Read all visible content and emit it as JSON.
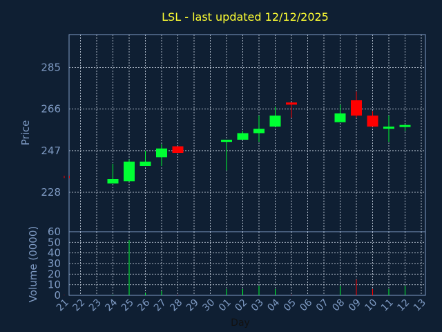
{
  "chart_data": {
    "type": "candlestick",
    "title": "LSL - last updated 12/12/2025",
    "xlabel": "Day",
    "ylabel": "Price",
    "volume_label": "Volume (0000)",
    "price_ticks": [
      "228",
      "247",
      "266",
      "285"
    ],
    "price_tick_values": [
      228,
      247,
      266,
      285
    ],
    "price_range": [
      210,
      300
    ],
    "volume_ticks": [
      "0",
      "10",
      "20",
      "30",
      "40",
      "50",
      "60"
    ],
    "volume_tick_values": [
      0,
      10,
      20,
      30,
      40,
      50,
      60
    ],
    "volume_range": [
      0,
      60
    ],
    "x_ticks": [
      "21",
      "22",
      "23",
      "24",
      "25",
      "26",
      "27",
      "28",
      "29",
      "30",
      "01",
      "02",
      "03",
      "04",
      "05",
      "06",
      "07",
      "08",
      "09",
      "10",
      "11",
      "12",
      "13"
    ],
    "grid": true,
    "candles": [
      {
        "x": "21",
        "open": 235.5,
        "high": 235.5,
        "low": 234.5,
        "close": 234.5,
        "volume": 0.3
      },
      {
        "x": "24",
        "open": 232,
        "high": 241,
        "low": 232,
        "close": 234,
        "volume": 0.6
      },
      {
        "x": "25",
        "open": 233,
        "high": 243,
        "low": 233,
        "close": 242,
        "volume": 52
      },
      {
        "x": "26",
        "open": 240,
        "high": 247,
        "low": 240,
        "close": 242,
        "volume": 2
      },
      {
        "x": "27",
        "open": 244,
        "high": 250,
        "low": 240,
        "close": 248,
        "volume": 4
      },
      {
        "x": "28",
        "open": 249,
        "high": 249,
        "low": 246,
        "close": 246,
        "volume": 0.5
      },
      {
        "x": "01",
        "open": 251,
        "high": 252,
        "low": 238,
        "close": 252,
        "volume": 6
      },
      {
        "x": "02",
        "open": 252,
        "high": 256,
        "low": 252,
        "close": 255,
        "volume": 6
      },
      {
        "x": "03",
        "open": 255,
        "high": 263,
        "low": 251,
        "close": 257,
        "volume": 9
      },
      {
        "x": "04",
        "open": 258,
        "high": 267,
        "low": 258,
        "close": 263,
        "volume": 6
      },
      {
        "x": "05",
        "open": 269,
        "high": 269,
        "low": 262,
        "close": 268,
        "volume": 0.5
      },
      {
        "x": "08",
        "open": 260,
        "high": 268,
        "low": 260,
        "close": 264,
        "volume": 9
      },
      {
        "x": "09",
        "open": 270,
        "high": 274,
        "low": 262,
        "close": 263,
        "volume": 15
      },
      {
        "x": "10",
        "open": 263,
        "high": 265,
        "low": 258,
        "close": 258,
        "volume": 6
      },
      {
        "x": "11",
        "open": 257,
        "high": 263,
        "low": 251,
        "close": 258,
        "volume": 6
      },
      {
        "x": "12",
        "open": 258,
        "high": 259,
        "low": 256,
        "close": 258.5,
        "volume": 9
      }
    ]
  },
  "colors": {
    "background": "#0f1f33",
    "up": "#00ff33",
    "down": "#ff0000",
    "frame": "#7f9bc4",
    "grid": "#c8d2e0",
    "title": "#ffff33",
    "ticks": "#7f9bc4",
    "xlabel": "#111111"
  }
}
